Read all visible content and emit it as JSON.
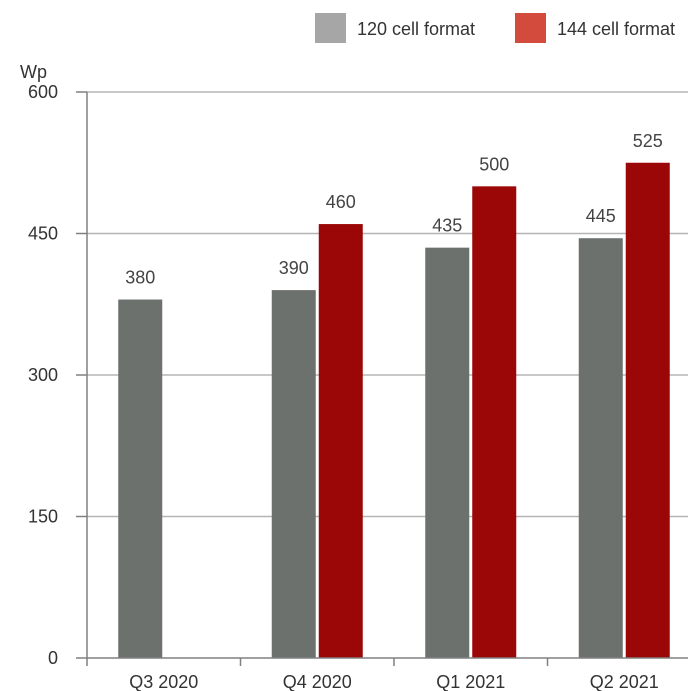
{
  "chart_data": {
    "type": "bar",
    "ylabel": "Wp",
    "ylim": [
      0,
      600
    ],
    "yticks": [
      0,
      150,
      300,
      450,
      600
    ],
    "grid": true,
    "legend_position": "top-right",
    "categories": [
      "Q3 2020",
      "Q4 2020",
      "Q1 2021",
      "Q2 2021"
    ],
    "series": [
      {
        "name": "120 cell format",
        "color": "#6d716e",
        "legend_color": "#a6a6a6",
        "values": [
          380,
          390,
          435,
          445
        ]
      },
      {
        "name": "144 cell format",
        "color": "#9b0606",
        "legend_color": "#d24b3c",
        "values": [
          null,
          460,
          500,
          525
        ]
      }
    ]
  }
}
